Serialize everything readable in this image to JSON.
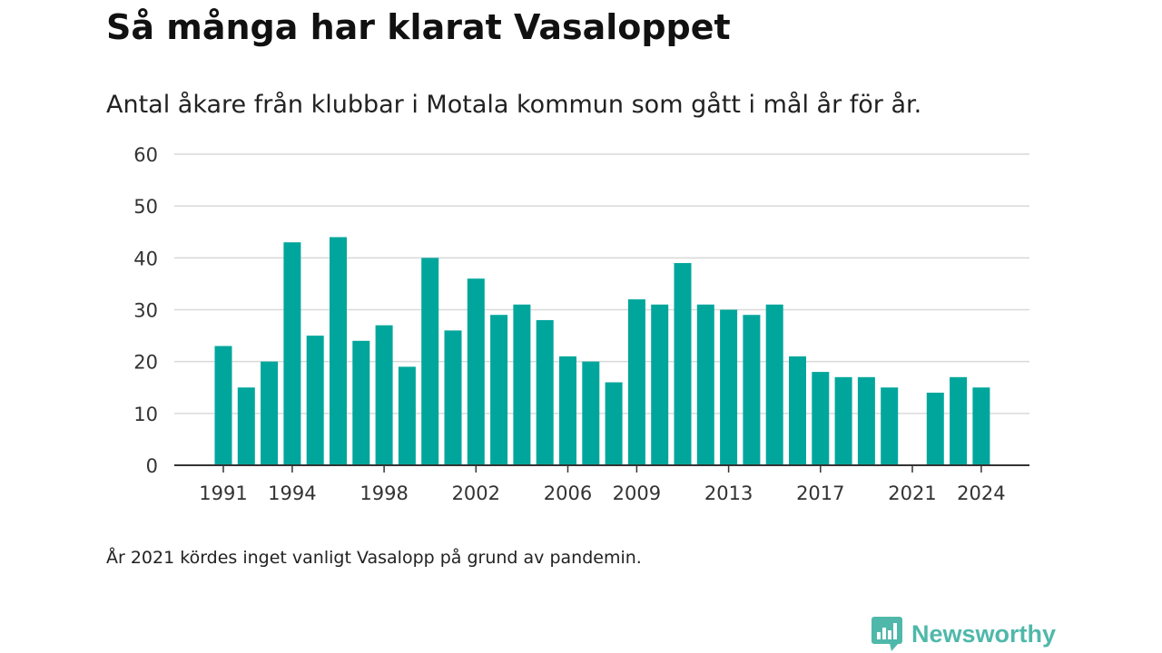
{
  "title": "Så många har klarat Vasaloppet",
  "subtitle": "Antal åkare från klubbar i Motala kommun som gått i mål år för år.",
  "footnote": "År 2021 kördes inget vanligt Vasalopp på grund av pandemin.",
  "brand": {
    "name": "Newsworthy",
    "icon": "newsworthy-logo-icon",
    "color": "#4fb8aa"
  },
  "chart_data": {
    "type": "bar",
    "title": "Så många har klarat Vasaloppet",
    "subtitle": "Antal åkare från klubbar i Motala kommun som gått i mål år för år.",
    "xlabel": "",
    "ylabel": "",
    "ylim": [
      0,
      60
    ],
    "yticks": [
      0,
      10,
      20,
      30,
      40,
      50,
      60
    ],
    "xtick_labels": [
      "1991",
      "1994",
      "1998",
      "2002",
      "2006",
      "2009",
      "2013",
      "2017",
      "2021",
      "2024"
    ],
    "grid": true,
    "bar_color": "#00a69c",
    "categories": [
      1991,
      1992,
      1993,
      1994,
      1995,
      1996,
      1997,
      1998,
      1999,
      2000,
      2001,
      2002,
      2003,
      2004,
      2005,
      2006,
      2007,
      2008,
      2009,
      2010,
      2011,
      2012,
      2013,
      2014,
      2015,
      2016,
      2017,
      2018,
      2019,
      2020,
      2021,
      2022,
      2023,
      2024
    ],
    "values": [
      23,
      15,
      20,
      43,
      25,
      44,
      24,
      27,
      19,
      40,
      26,
      36,
      29,
      31,
      28,
      21,
      20,
      16,
      32,
      31,
      39,
      31,
      30,
      29,
      31,
      21,
      18,
      17,
      17,
      15,
      null,
      14,
      17,
      15
    ]
  }
}
